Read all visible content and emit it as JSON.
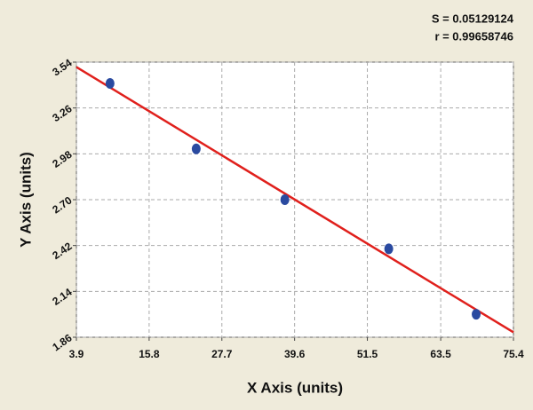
{
  "chart_data": {
    "type": "scatter",
    "annotations": [
      "S = 0.05129124",
      "r = 0.99658746"
    ],
    "x_label": "X Axis (units)",
    "y_label": "Y Axis (units)",
    "xlim": [
      3.9,
      75.4
    ],
    "xticks": [
      3.9,
      15.8,
      27.7,
      39.6,
      51.5,
      63.5,
      75.4
    ],
    "ylim": [
      1.86,
      3.54
    ],
    "yticks": [
      1.86,
      2.14,
      2.42,
      {
        "value": 2.7,
        "label": "2.70"
      },
      2.98,
      3.26,
      3.54
    ],
    "grid": true,
    "series": [
      {
        "color": "#2a4aa0",
        "x": [
          9.4,
          23.5,
          38.0,
          55.0,
          69.3
        ],
        "values": [
          3.41,
          3.01,
          2.7,
          2.4,
          2.0
        ]
      }
    ],
    "fit_line": {
      "color": "#e0201c",
      "x": [
        3.9,
        75.4
      ],
      "values": [
        3.51,
        1.89
      ]
    }
  }
}
